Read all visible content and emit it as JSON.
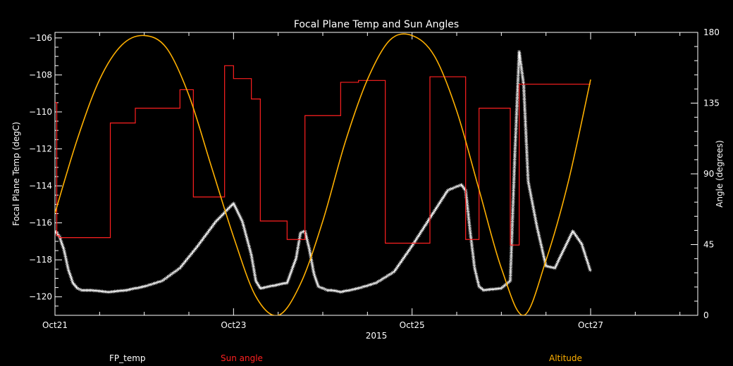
{
  "chart_data": {
    "type": "line",
    "title": "Focal Plane Temp and Sun Angles",
    "xlabel": "2015",
    "ylabel": "Focal Plane Temp (degC)",
    "y2label": "Angle (degrees)",
    "x_tick_labels": [
      "Oct21",
      "Oct23",
      "Oct25",
      "Oct27"
    ],
    "x_tick_values": [
      21,
      23,
      25,
      27
    ],
    "xlim": [
      21,
      28.2
    ],
    "ylim": [
      -121,
      -105.7
    ],
    "y_ticks": [
      -106,
      -108,
      -110,
      -112,
      -114,
      -116,
      -118,
      -120
    ],
    "y2lim": [
      0,
      180
    ],
    "y2_ticks": [
      0,
      45,
      90,
      135,
      180
    ],
    "grid": false,
    "legend_position": "bottom",
    "series": [
      {
        "name": "FP_temp",
        "axis": "left",
        "color": "#ffffff",
        "marker": "star",
        "x": [
          21.0,
          21.05,
          21.1,
          21.15,
          21.2,
          21.25,
          21.3,
          21.4,
          21.6,
          21.8,
          22.0,
          22.2,
          22.4,
          22.6,
          22.8,
          23.0,
          23.1,
          23.2,
          23.25,
          23.3,
          23.4,
          23.5,
          23.6,
          23.7,
          23.75,
          23.8,
          23.85,
          23.9,
          23.95,
          24.0,
          24.05,
          24.1,
          24.2,
          24.4,
          24.6,
          24.8,
          25.0,
          25.2,
          25.4,
          25.55,
          25.6,
          25.65,
          25.7,
          25.75,
          25.8,
          26.0,
          26.1,
          26.15,
          26.2,
          26.25,
          26.3,
          26.4,
          26.5,
          26.6,
          26.7,
          26.8,
          26.9,
          27.0
        ],
        "values": [
          -116.5,
          -116.8,
          -117.5,
          -118.6,
          -119.3,
          -119.6,
          -119.7,
          -119.7,
          -119.8,
          -119.7,
          -119.5,
          -119.2,
          -118.5,
          -117.3,
          -116.0,
          -115.0,
          -116.0,
          -117.8,
          -119.2,
          -119.6,
          -119.5,
          -119.4,
          -119.3,
          -118.0,
          -116.6,
          -116.5,
          -117.5,
          -118.8,
          -119.5,
          -119.6,
          -119.7,
          -119.7,
          -119.8,
          -119.6,
          -119.3,
          -118.7,
          -117.3,
          -115.8,
          -114.3,
          -114.0,
          -114.3,
          -116.5,
          -118.5,
          -119.5,
          -119.7,
          -119.6,
          -119.2,
          -112.5,
          -106.8,
          -108.6,
          -113.8,
          -116.3,
          -118.4,
          -118.5,
          -117.5,
          -116.5,
          -117.2,
          -118.7
        ]
      },
      {
        "name": "Sun angle",
        "axis": "left",
        "color": "#ff2020",
        "step": true,
        "x": [
          21.0,
          21.02,
          21.05,
          21.07,
          21.15,
          21.2,
          21.25,
          21.3,
          21.4,
          21.45,
          21.5,
          21.55,
          21.6,
          21.62,
          21.7,
          21.75,
          21.8,
          21.85,
          21.9,
          22.0,
          22.05,
          22.1,
          22.15,
          22.2,
          22.3,
          22.35,
          22.4,
          22.5,
          22.55,
          22.6,
          22.65,
          22.7,
          22.8,
          22.9,
          22.95,
          23.0,
          23.1,
          23.2,
          23.25,
          23.3,
          23.35,
          23.4,
          23.5,
          23.6,
          23.7,
          23.75,
          23.8,
          23.9,
          24.0,
          24.1,
          24.2,
          24.3,
          24.4,
          24.5,
          24.6,
          24.7,
          24.8,
          25.0,
          25.1,
          25.2,
          25.3,
          25.4,
          25.5,
          25.6,
          25.7,
          25.75,
          25.8,
          25.9,
          26.0,
          26.1,
          26.15,
          26.2,
          26.25,
          26.3,
          26.35,
          26.4,
          26.45,
          26.5,
          26.55,
          26.6,
          26.65,
          26.7,
          26.72,
          26.75,
          26.8,
          26.85,
          26.88,
          26.9,
          27.0
        ],
        "values": [
          -109.5,
          -116.7,
          -116.8,
          -116.8,
          -116.8,
          -116.8,
          -116.8,
          -116.8,
          -116.8,
          -116.8,
          -116.8,
          -116.8,
          -116.8,
          -110.6,
          -110.6,
          -110.6,
          -110.6,
          -110.6,
          -109.8,
          -109.8,
          -109.8,
          -109.8,
          -109.8,
          -109.8,
          -109.8,
          -109.8,
          -108.8,
          -108.8,
          -114.6,
          -114.6,
          -114.6,
          -114.6,
          -114.6,
          -107.5,
          -107.5,
          -108.2,
          -108.2,
          -109.3,
          -109.3,
          -115.9,
          -115.9,
          -115.9,
          -115.9,
          -116.9,
          -116.9,
          -116.9,
          -110.2,
          -110.2,
          -110.2,
          -110.2,
          -108.4,
          -108.4,
          -108.3,
          -108.3,
          -108.3,
          -117.1,
          -117.1,
          -117.1,
          -117.1,
          -108.1,
          -108.1,
          -108.1,
          -108.1,
          -116.9,
          -116.9,
          -109.8,
          -109.8,
          -109.8,
          -109.8,
          -117.2,
          -117.2,
          -108.5,
          -108.5,
          -108.5,
          -108.5,
          -108.5,
          -108.5,
          -108.5,
          -108.5,
          -108.5,
          -108.5,
          -108.5,
          -108.5,
          -108.5,
          -108.5,
          -108.5,
          -108.5,
          -108.5,
          -108.5
        ]
      },
      {
        "name": "Altitude",
        "axis": "right",
        "color": "#ffb000",
        "x": [
          21.0,
          21.25,
          21.5,
          21.75,
          22.0,
          22.25,
          22.5,
          22.75,
          23.0,
          23.25,
          23.5,
          23.75,
          24.0,
          24.25,
          24.5,
          24.75,
          25.0,
          25.25,
          25.5,
          25.75,
          26.0,
          26.25,
          26.5,
          26.75,
          27.0
        ],
        "values": [
          65,
          112,
          150,
          172,
          178,
          170,
          140,
          95,
          50,
          12,
          0,
          20,
          60,
          110,
          150,
          175,
          178,
          165,
          130,
          80,
          30,
          0,
          35,
          85,
          150
        ]
      }
    ]
  }
}
